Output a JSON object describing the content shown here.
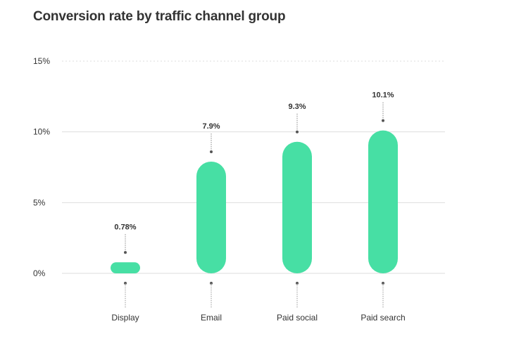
{
  "chart_data": {
    "type": "bar",
    "title": "Conversion rate by traffic channel group",
    "xlabel": "",
    "ylabel": "",
    "categories": [
      "Display",
      "Email",
      "Paid social",
      "Paid search"
    ],
    "values": [
      0.78,
      7.9,
      9.3,
      10.1
    ],
    "value_labels": [
      "0.78%",
      "7.9%",
      "9.3%",
      "10.1%"
    ],
    "ylim": [
      0,
      15
    ],
    "yticks": [
      0,
      5,
      10,
      15
    ],
    "ytick_labels": [
      "0%",
      "5%",
      "10%",
      "15%"
    ],
    "grid": true,
    "legend": "none",
    "bar_color": "#47dfa4",
    "grid_color": "#dddddd",
    "text_color": "#333333"
  }
}
